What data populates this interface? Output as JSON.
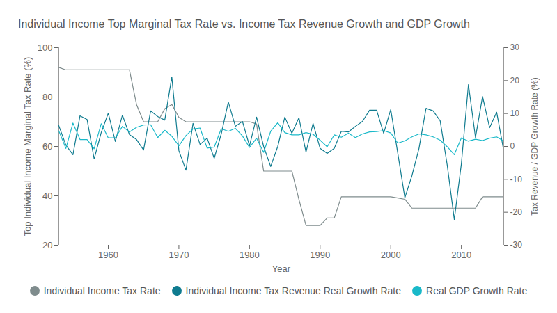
{
  "chart_data": {
    "type": "line",
    "title": "Individual Income Top Marginal Tax Rate vs. Income Tax Revenue Growth and GDP Growth",
    "x_label": "Year",
    "y_label": "Top Individual Income Marginal Tax Rate (%)",
    "y2_label": "Tax Revenue / GDP Growth Rate (%)",
    "x": [
      1953,
      1954,
      1955,
      1956,
      1957,
      1958,
      1959,
      1960,
      1961,
      1962,
      1963,
      1964,
      1965,
      1966,
      1967,
      1968,
      1969,
      1970,
      1971,
      1972,
      1973,
      1974,
      1975,
      1976,
      1977,
      1978,
      1979,
      1980,
      1981,
      1982,
      1983,
      1984,
      1985,
      1986,
      1987,
      1988,
      1989,
      1990,
      1991,
      1992,
      1993,
      1994,
      1995,
      1996,
      1997,
      1998,
      1999,
      2000,
      2001,
      2002,
      2003,
      2004,
      2005,
      2006,
      2007,
      2008,
      2009,
      2010,
      2011,
      2012,
      2013,
      2014,
      2015,
      2016
    ],
    "xlim": [
      1953,
      2016
    ],
    "xticks": [
      1960,
      1970,
      1980,
      1990,
      2000,
      2010
    ],
    "ylim": [
      20,
      100
    ],
    "yticks": [
      20,
      40,
      60,
      80,
      100
    ],
    "y2lim": [
      -30,
      30
    ],
    "y2ticks": [
      -30,
      -20,
      -10,
      0,
      10,
      20,
      30
    ],
    "grid": false,
    "legend": "bottom",
    "series": [
      {
        "name": "Individual Income Tax Rate",
        "color": "#7f8c8d",
        "values": [
          92,
          91,
          91,
          91,
          91,
          91,
          91,
          91,
          91,
          91,
          91,
          77,
          70,
          70,
          70,
          75.25,
          77,
          71.75,
          70,
          70,
          70,
          70,
          70,
          70,
          70,
          70,
          70,
          70,
          69.1,
          50,
          50,
          50,
          50,
          50,
          38.5,
          28,
          28,
          28,
          31,
          31,
          39.6,
          39.6,
          39.6,
          39.6,
          39.6,
          39.6,
          39.6,
          39.6,
          39.1,
          38.6,
          35,
          35,
          35,
          35,
          35,
          35,
          35,
          35,
          35,
          35,
          39.6,
          39.6,
          39.6,
          39.6
        ]
      },
      {
        "name": "Individual Income Tax Revenue Real Growth Rate",
        "color": "#0f7b8f",
        "axis": "y2",
        "values": [
          6.3,
          0.4,
          -2.5,
          9.3,
          8.2,
          -3.8,
          4.2,
          10.1,
          1.5,
          9.5,
          3.6,
          2.1,
          -1.1,
          10.8,
          9.1,
          8,
          21.1,
          -1.3,
          -7.2,
          7,
          0.6,
          2.5,
          -3.6,
          3.8,
          13.5,
          6.1,
          7.6,
          0.2,
          8.9,
          0,
          -6.1,
          0,
          8.9,
          4,
          8.7,
          -1.7,
          7,
          -0.6,
          -2.1,
          -0.6,
          4.6,
          4.4,
          6.1,
          7.6,
          11,
          11,
          4,
          11.2,
          -2.1,
          -15.6,
          -8.9,
          -0.6,
          11.6,
          10.8,
          7.8,
          -5.7,
          -22.2,
          -5.3,
          18.8,
          2.7,
          15.2,
          5.7,
          10.4,
          -1.3
        ]
      },
      {
        "name": "Real GDP Growth Rate",
        "color": "#1ab9c9",
        "axis": "y2",
        "values": [
          4.7,
          -0.6,
          7.1,
          2.1,
          2.1,
          -0.7,
          6.9,
          2.6,
          2.6,
          6.1,
          4.4,
          5.8,
          6.5,
          6.6,
          2.7,
          4.9,
          3.1,
          0.2,
          3.3,
          5.3,
          5.6,
          -0.5,
          -0.2,
          5.4,
          4.6,
          5.5,
          3.2,
          -0.3,
          2.5,
          -1.8,
          4.6,
          7.2,
          4.2,
          3.5,
          3.5,
          4.2,
          3.7,
          1.9,
          -0.1,
          3.5,
          2.8,
          4,
          2.7,
          3.8,
          4.4,
          4.5,
          4.8,
          4.1,
          1,
          1.7,
          2.9,
          3.8,
          3.5,
          2.9,
          1.9,
          -0.1,
          -2.5,
          2.6,
          1.6,
          2.2,
          1.8,
          2.5,
          2.9,
          1.6
        ]
      }
    ]
  }
}
